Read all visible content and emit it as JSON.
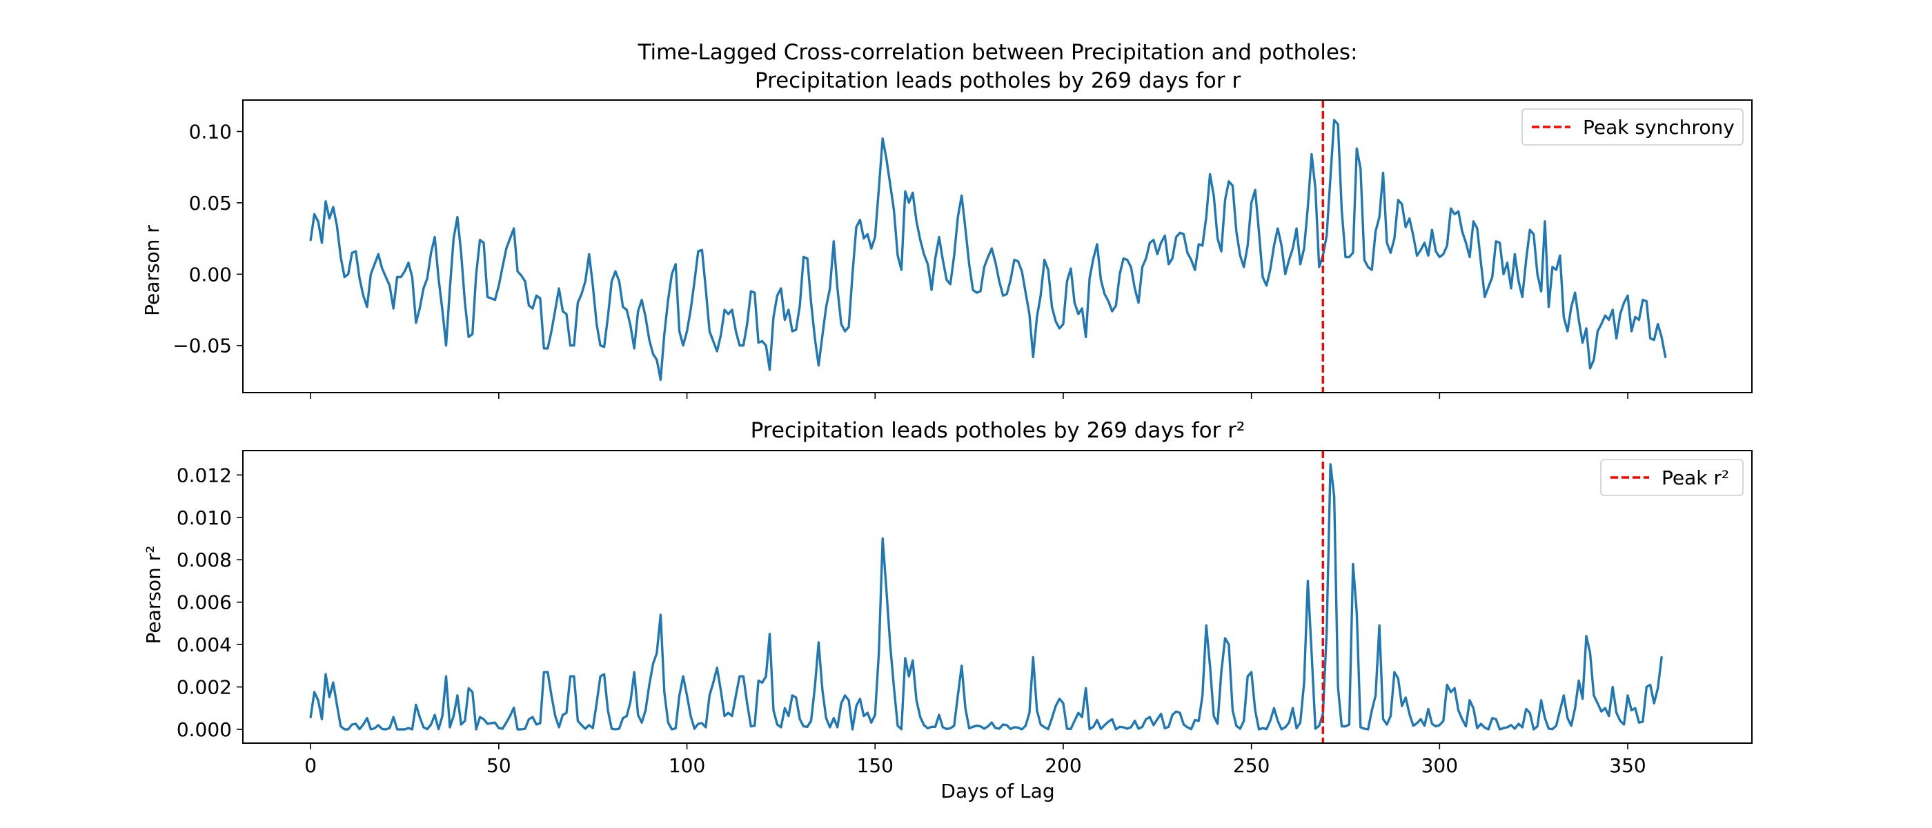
{
  "chart_data": [
    {
      "type": "line",
      "title_line1": "Time-Lagged Cross-correlation between Precipitation and potholes:",
      "title_line2": "Precipitation leads potholes by 269 days for r",
      "xlabel": "",
      "ylabel": "Pearson r",
      "xlim": [
        -18,
        383
      ],
      "ylim": [
        -0.083,
        0.122
      ],
      "x_ticks": [
        0,
        50,
        100,
        150,
        200,
        250,
        300,
        350
      ],
      "x_tick_labels_shown": false,
      "y_ticks": [
        -0.05,
        0.0,
        0.05,
        0.1
      ],
      "y_tick_labels": [
        "−0.05",
        "0.00",
        "0.05",
        "0.10"
      ],
      "grid": false,
      "legend_position": "top-right",
      "peak": {
        "x": 269,
        "legend_label": "Peak synchrony",
        "color": "#ff0000",
        "style": "dashed"
      },
      "series_color": "#1f77b4",
      "x_start": 0,
      "x_step": 1,
      "values": [
        0.024,
        0.042,
        0.037,
        0.022,
        0.051,
        0.039,
        0.047,
        0.034,
        0.012,
        -0.002,
        0.0,
        0.015,
        0.016,
        -0.003,
        -0.015,
        -0.023,
        0.0,
        0.007,
        0.014,
        0.004,
        -0.002,
        -0.008,
        -0.024,
        -0.002,
        -0.002,
        0.002,
        0.008,
        -0.002,
        -0.034,
        -0.024,
        -0.01,
        -0.003,
        0.015,
        0.026,
        -0.003,
        -0.025,
        -0.05,
        -0.01,
        0.025,
        0.04,
        0.015,
        -0.02,
        -0.044,
        -0.042,
        0.0,
        0.024,
        0.022,
        -0.016,
        -0.017,
        -0.018,
        -0.008,
        0.005,
        0.018,
        0.025,
        0.032,
        0.002,
        -0.001,
        -0.005,
        -0.022,
        -0.024,
        -0.015,
        -0.017,
        -0.052,
        -0.052,
        -0.04,
        -0.025,
        -0.01,
        -0.026,
        -0.028,
        -0.05,
        -0.05,
        -0.02,
        -0.014,
        -0.005,
        0.014,
        -0.008,
        -0.035,
        -0.05,
        -0.051,
        -0.03,
        -0.005,
        0.002,
        -0.005,
        -0.023,
        -0.025,
        -0.036,
        -0.052,
        -0.026,
        -0.018,
        -0.03,
        -0.046,
        -0.056,
        -0.06,
        -0.074,
        -0.042,
        -0.018,
        0.0,
        0.007,
        -0.04,
        -0.05,
        -0.04,
        -0.025,
        -0.005,
        0.016,
        0.017,
        -0.01,
        -0.04,
        -0.047,
        -0.054,
        -0.043,
        -0.025,
        -0.028,
        -0.025,
        -0.04,
        -0.05,
        -0.05,
        -0.035,
        -0.012,
        -0.013,
        -0.048,
        -0.047,
        -0.05,
        -0.067,
        -0.03,
        -0.015,
        -0.01,
        -0.032,
        -0.025,
        -0.04,
        -0.039,
        -0.022,
        0.012,
        0.011,
        -0.02,
        -0.045,
        -0.064,
        -0.043,
        -0.023,
        -0.01,
        0.023,
        -0.01,
        -0.035,
        -0.04,
        -0.037,
        0.0,
        0.033,
        0.038,
        0.025,
        0.028,
        0.018,
        0.026,
        0.06,
        0.095,
        0.081,
        0.063,
        0.045,
        0.013,
        0.003,
        0.058,
        0.05,
        0.057,
        0.037,
        0.024,
        0.014,
        0.007,
        -0.011,
        0.011,
        0.026,
        0.01,
        -0.004,
        -0.007,
        0.013,
        0.04,
        0.055,
        0.032,
        0.007,
        -0.011,
        -0.013,
        -0.012,
        0.005,
        0.012,
        0.018,
        0.008,
        -0.005,
        -0.015,
        -0.014,
        -0.004,
        0.01,
        0.009,
        0.002,
        -0.013,
        -0.028,
        -0.058,
        -0.03,
        -0.015,
        0.01,
        0.003,
        -0.023,
        -0.033,
        -0.038,
        -0.035,
        -0.005,
        0.004,
        -0.02,
        -0.028,
        -0.024,
        -0.044,
        -0.003,
        0.011,
        0.021,
        -0.004,
        -0.014,
        -0.019,
        -0.026,
        -0.022,
        0.0,
        0.011,
        0.01,
        0.005,
        -0.01,
        -0.02,
        0.005,
        0.011,
        0.022,
        0.024,
        0.014,
        0.022,
        0.027,
        0.007,
        0.011,
        0.026,
        0.029,
        0.028,
        0.015,
        0.01,
        0.003,
        0.021,
        0.02,
        0.04,
        0.07,
        0.055,
        0.025,
        0.016,
        0.052,
        0.065,
        0.062,
        0.03,
        0.013,
        0.005,
        0.02,
        0.05,
        0.059,
        0.03,
        -0.002,
        -0.008,
        0.003,
        0.02,
        0.032,
        0.02,
        0.0,
        0.01,
        0.018,
        0.032,
        0.007,
        0.018,
        0.047,
        0.084,
        0.06,
        0.005,
        0.013,
        0.027,
        0.068,
        0.108,
        0.105,
        0.045,
        0.012,
        0.012,
        0.015,
        0.088,
        0.074,
        0.01,
        0.005,
        0.003,
        0.03,
        0.04,
        0.071,
        0.022,
        0.015,
        0.025,
        0.052,
        0.049,
        0.033,
        0.039,
        0.027,
        0.013,
        0.017,
        0.022,
        0.013,
        0.031,
        0.016,
        0.012,
        0.014,
        0.02,
        0.046,
        0.042,
        0.044,
        0.03,
        0.022,
        0.012,
        0.037,
        0.032,
        0.008,
        -0.016,
        -0.009,
        -0.002,
        0.023,
        0.022,
        0.0,
        0.008,
        -0.01,
        0.014,
        -0.005,
        -0.016,
        0.01,
        0.031,
        0.028,
        0.0,
        -0.012,
        0.037,
        -0.023,
        0.005,
        0.003,
        0.013,
        -0.03,
        -0.04,
        -0.023,
        -0.013,
        -0.032,
        -0.048,
        -0.038,
        -0.066,
        -0.06,
        -0.04,
        -0.035,
        -0.029,
        -0.032,
        -0.025,
        -0.045,
        -0.028,
        -0.02,
        -0.015,
        -0.04,
        -0.03,
        -0.032,
        -0.018,
        -0.019,
        -0.045,
        -0.046,
        -0.035,
        -0.044,
        -0.058
      ]
    },
    {
      "type": "line",
      "title_line1": "Precipitation leads potholes by 269 days for r²",
      "xlabel": "Days of Lag",
      "ylabel": "Pearson r²",
      "xlim": [
        -18,
        383
      ],
      "ylim": [
        -0.00065,
        0.01315
      ],
      "x_ticks": [
        0,
        50,
        100,
        150,
        200,
        250,
        300,
        350
      ],
      "x_tick_labels": [
        "0",
        "50",
        "100",
        "150",
        "200",
        "250",
        "300",
        "350"
      ],
      "y_ticks": [
        0.0,
        0.002,
        0.004,
        0.006,
        0.008,
        0.01,
        0.012
      ],
      "y_tick_labels": [
        "0.000",
        "0.002",
        "0.004",
        "0.006",
        "0.008",
        "0.010",
        "0.012"
      ],
      "grid": false,
      "legend_position": "top-right",
      "peak": {
        "x": 269,
        "legend_label": "Peak r²",
        "color": "#ff0000",
        "style": "dashed"
      },
      "series_color": "#1f77b4",
      "x_start": 0,
      "x_step": 1,
      "values": [
        0.00058,
        0.00176,
        0.00137,
        0.00048,
        0.0026,
        0.00152,
        0.00221,
        0.00116,
        0.00014,
        0.0,
        0.0,
        0.00023,
        0.00026,
        1e-05,
        0.00023,
        0.00053,
        0.0,
        5e-05,
        0.0002,
        2e-05,
        0.0,
        6e-05,
        0.00058,
        0.0,
        0.0,
        0.0,
        6e-05,
        0.0,
        0.00116,
        0.00058,
        0.0001,
        1e-05,
        0.00023,
        0.00068,
        1e-05,
        0.00063,
        0.0025,
        0.0001,
        0.00063,
        0.0016,
        0.00023,
        0.0004,
        0.00194,
        0.00176,
        0.0,
        0.00058,
        0.00048,
        0.00026,
        0.00029,
        0.00032,
        6e-05,
        3e-05,
        0.00032,
        0.00063,
        0.00102,
        0.0,
        0.0,
        3e-05,
        0.00048,
        0.00058,
        0.00023,
        0.00029,
        0.0027,
        0.0027,
        0.0016,
        0.00063,
        0.0001,
        0.00068,
        0.00078,
        0.0025,
        0.0025,
        0.0004,
        0.0002,
        3e-05,
        0.0002,
        6e-05,
        0.00123,
        0.0025,
        0.0026,
        0.0009,
        3e-05,
        0.0,
        3e-05,
        0.00053,
        0.00063,
        0.0013,
        0.0027,
        0.00068,
        0.00032,
        0.0009,
        0.0021,
        0.0031,
        0.0036,
        0.0054,
        0.00176,
        0.00032,
        0.0,
        5e-05,
        0.0016,
        0.0025,
        0.0016,
        0.00063,
        3e-05,
        0.00026,
        0.00029,
        0.0001,
        0.0016,
        0.0022,
        0.0029,
        0.00185,
        0.00063,
        0.00078,
        0.00063,
        0.0016,
        0.0025,
        0.0025,
        0.00123,
        0.00014,
        0.00017,
        0.0023,
        0.0022,
        0.0025,
        0.0045,
        0.0009,
        0.00023,
        0.0001,
        0.001,
        0.00063,
        0.0016,
        0.0015,
        0.00048,
        0.00014,
        0.00012,
        0.0004,
        0.002,
        0.0041,
        0.00185,
        0.00053,
        0.0001,
        0.00053,
        0.0001,
        0.00123,
        0.0016,
        0.00137,
        0.0,
        0.0011,
        0.00144,
        0.00063,
        0.00078,
        0.00032,
        0.00068,
        0.0036,
        0.009,
        0.0066,
        0.004,
        0.002,
        0.00017,
        1e-05,
        0.00336,
        0.0025,
        0.00325,
        0.00137,
        0.00058,
        0.0002,
        5e-05,
        0.00012,
        0.00012,
        0.00068,
        0.0001,
        2e-05,
        5e-05,
        0.00017,
        0.0016,
        0.003,
        0.001,
        5e-05,
        0.00012,
        0.00017,
        0.00014,
        3e-05,
        0.00014,
        0.00032,
        6e-05,
        3e-05,
        0.00023,
        0.0002,
        2e-05,
        0.0001,
        8e-05,
        0.0,
        0.00017,
        0.00078,
        0.0034,
        0.0009,
        0.00023,
        0.0001,
        1e-05,
        0.00053,
        0.0011,
        0.00144,
        0.00123,
        3e-05,
        2e-05,
        0.0004,
        0.00078,
        0.00058,
        0.00194,
        1e-05,
        0.00012,
        0.00044,
        2e-05,
        0.0002,
        0.00036,
        0.00048,
        0.0,
        0.00012,
        0.0001,
        3e-05,
        0.0001,
        0.0004,
        3e-05,
        0.00012,
        0.00048,
        0.00058,
        0.0002,
        0.00048,
        0.00073,
        5e-05,
        0.00012,
        0.00068,
        0.00084,
        0.00078,
        0.00023,
        0.0001,
        1e-05,
        0.00044,
        0.0004,
        0.0016,
        0.0049,
        0.003,
        0.00063,
        0.00026,
        0.0027,
        0.0043,
        0.004,
        0.0009,
        0.00017,
        3e-05,
        0.0004,
        0.0025,
        0.0027,
        0.0009,
        0.0,
        6e-05,
        1e-05,
        0.0004,
        0.001,
        0.0004,
        0.0,
        0.0001,
        0.00032,
        0.001,
        5e-05,
        0.00032,
        0.0022,
        0.007,
        0.0036,
        3e-05,
        0.00017,
        0.00073,
        0.0046,
        0.0125,
        0.011,
        0.002,
        0.00014,
        0.00014,
        0.00023,
        0.0078,
        0.0055,
        0.0001,
        3e-05,
        0.0,
        0.0009,
        0.0016,
        0.0049,
        0.00048,
        0.00023,
        0.00063,
        0.0027,
        0.0024,
        0.0011,
        0.0015,
        0.00073,
        0.00017,
        0.00029,
        0.00048,
        0.00017,
        0.00096,
        0.00026,
        0.00014,
        0.0002,
        0.0004,
        0.0021,
        0.00176,
        0.00194,
        0.0009,
        0.00048,
        0.00014,
        0.00137,
        0.001,
        6e-05,
        0.00026,
        8e-05,
        0.0,
        0.00053,
        0.00048,
        0.0,
        6e-05,
        0.0001,
        0.0002,
        3e-05,
        0.00026,
        0.0001,
        0.00096,
        0.00078,
        0.0,
        0.00014,
        0.00137,
        0.00053,
        3e-05,
        1e-05,
        0.00017,
        0.0009,
        0.0016,
        0.00053,
        0.00017,
        0.001,
        0.0023,
        0.00144,
        0.0044,
        0.0036,
        0.0016,
        0.00123,
        0.00084,
        0.001,
        0.00063,
        0.002,
        0.00078,
        0.0004,
        0.00023,
        0.0016,
        0.0009,
        0.001,
        0.00032,
        0.00036,
        0.002,
        0.0021,
        0.00123,
        0.00194,
        0.0034
      ]
    }
  ]
}
